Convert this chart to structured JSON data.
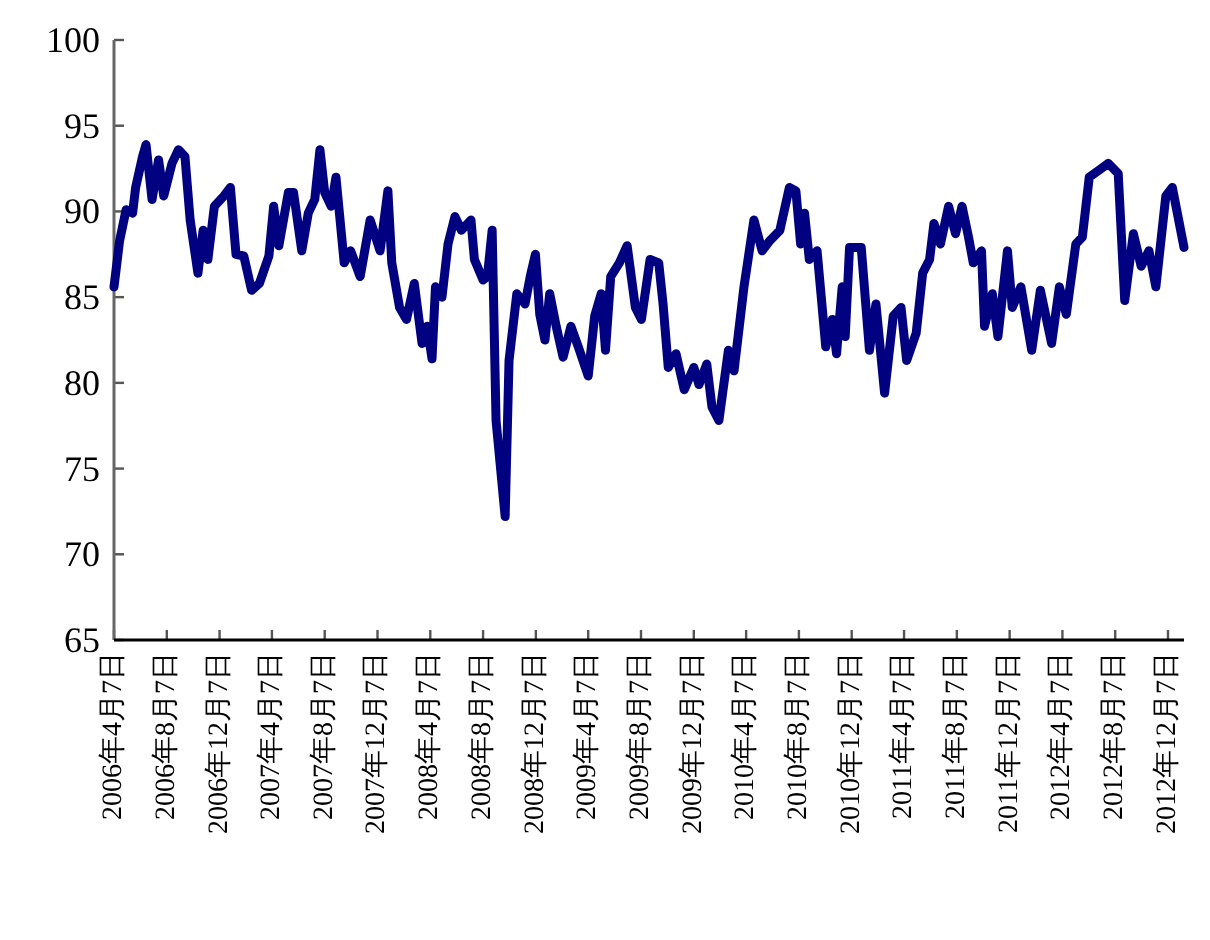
{
  "chart_data": {
    "type": "line",
    "xlim": [
      "2006-04-07",
      "2013-01-13"
    ],
    "ylim": [
      65,
      100
    ],
    "yticks": [
      65,
      70,
      75,
      80,
      85,
      90,
      95,
      100
    ],
    "xticks": [
      {
        "value": "2006-04-07",
        "label": "2006年4月7日"
      },
      {
        "value": "2006-08-07",
        "label": "2006年8月7日"
      },
      {
        "value": "2006-12-07",
        "label": "2006年12月7日"
      },
      {
        "value": "2007-04-07",
        "label": "2007年4月7日"
      },
      {
        "value": "2007-08-07",
        "label": "2007年8月7日"
      },
      {
        "value": "2007-12-07",
        "label": "2007年12月7日"
      },
      {
        "value": "2008-04-07",
        "label": "2008年4月7日"
      },
      {
        "value": "2008-08-07",
        "label": "2008年8月7日"
      },
      {
        "value": "2008-12-07",
        "label": "2008年12月7日"
      },
      {
        "value": "2009-04-07",
        "label": "2009年4月7日"
      },
      {
        "value": "2009-08-07",
        "label": "2009年8月7日"
      },
      {
        "value": "2009-12-07",
        "label": "2009年12月7日"
      },
      {
        "value": "2010-04-07",
        "label": "2010年4月7日"
      },
      {
        "value": "2010-08-07",
        "label": "2010年8月7日"
      },
      {
        "value": "2010-12-07",
        "label": "2010年12月7日"
      },
      {
        "value": "2011-04-07",
        "label": "2011年4月7日"
      },
      {
        "value": "2011-08-07",
        "label": "2011年8月7日"
      },
      {
        "value": "2011-12-07",
        "label": "2011年12月7日"
      },
      {
        "value": "2012-04-07",
        "label": "2012年4月7日"
      },
      {
        "value": "2012-08-07",
        "label": "2012年8月7日"
      },
      {
        "value": "2012-12-07",
        "label": "2012年12月7日"
      }
    ],
    "line_style": "solid",
    "marker": "none",
    "grid": false,
    "series": [
      {
        "color": "#000080",
        "x": [
          "2006-04-07",
          "2006-04-20",
          "2006-05-05",
          "2006-05-20",
          "2006-05-27",
          "2006-06-12",
          "2006-06-20",
          "2006-07-04",
          "2006-07-19",
          "2006-07-31",
          "2006-08-19",
          "2006-09-03",
          "2006-09-18",
          "2006-09-30",
          "2006-10-18",
          "2006-10-30",
          "2006-11-10",
          "2006-11-25",
          "2006-12-17",
          "2007-01-01",
          "2007-01-14",
          "2007-02-01",
          "2007-02-19",
          "2007-03-09",
          "2007-03-31",
          "2007-04-11",
          "2007-04-23",
          "2007-05-15",
          "2007-05-27",
          "2007-06-15",
          "2007-06-30",
          "2007-07-15",
          "2007-07-27",
          "2007-08-07",
          "2007-08-22",
          "2007-09-02",
          "2007-09-21",
          "2007-10-06",
          "2007-10-28",
          "2007-11-20",
          "2007-12-13",
          "2007-12-31",
          "2008-01-09",
          "2008-01-27",
          "2008-02-12",
          "2008-03-01",
          "2008-03-19",
          "2008-03-31",
          "2008-04-11",
          "2008-04-19",
          "2008-05-04",
          "2008-05-18",
          "2008-06-03",
          "2008-06-18",
          "2008-07-10",
          "2008-07-18",
          "2008-08-07",
          "2008-08-17",
          "2008-08-28",
          "2008-09-06",
          "2008-09-27",
          "2008-10-06",
          "2008-10-24",
          "2008-11-12",
          "2008-11-24",
          "2008-12-06",
          "2008-12-16",
          "2008-12-28",
          "2009-01-08",
          "2009-01-23",
          "2009-02-08",
          "2009-02-26",
          "2009-03-15",
          "2009-04-07",
          "2009-04-22",
          "2009-05-07",
          "2009-05-17",
          "2009-05-29",
          "2009-06-18",
          "2009-07-06",
          "2009-07-25",
          "2009-08-08",
          "2009-08-28",
          "2009-09-17",
          "2009-09-27",
          "2009-10-09",
          "2009-10-27",
          "2009-11-15",
          "2009-12-07",
          "2009-12-19",
          "2010-01-06",
          "2010-01-18",
          "2010-02-03",
          "2010-02-25",
          "2010-03-10",
          "2010-04-02",
          "2010-04-25",
          "2010-05-14",
          "2010-06-01",
          "2010-06-24",
          "2010-07-16",
          "2010-07-31",
          "2010-08-11",
          "2010-08-20",
          "2010-08-31",
          "2010-09-18",
          "2010-10-08",
          "2010-10-23",
          "2010-11-02",
          "2010-11-15",
          "2010-11-22",
          "2010-12-02",
          "2010-12-29",
          "2011-01-17",
          "2011-02-01",
          "2011-02-21",
          "2011-03-13",
          "2011-03-31",
          "2011-04-13",
          "2011-05-05",
          "2011-05-20",
          "2011-06-05",
          "2011-06-15",
          "2011-06-30",
          "2011-07-19",
          "2011-08-04",
          "2011-08-19",
          "2011-09-03",
          "2011-09-14",
          "2011-10-03",
          "2011-10-10",
          "2011-10-28",
          "2011-11-10",
          "2011-12-02",
          "2011-12-13",
          "2012-01-02",
          "2012-01-27",
          "2012-02-16",
          "2012-03-13",
          "2012-03-31",
          "2012-04-16",
          "2012-05-08",
          "2012-05-23",
          "2012-06-08",
          "2012-06-30",
          "2012-07-22",
          "2012-08-14",
          "2012-08-29",
          "2012-09-18",
          "2012-10-06",
          "2012-10-24",
          "2012-11-09",
          "2012-12-02",
          "2012-12-17",
          "2013-01-13"
        ],
        "values": [
          85.6,
          88.3,
          90.1,
          89.9,
          91.4,
          93.2,
          93.9,
          90.7,
          93.0,
          90.9,
          92.8,
          93.6,
          93.2,
          89.5,
          86.4,
          88.9,
          87.2,
          90.3,
          90.9,
          91.4,
          87.5,
          87.4,
          85.4,
          85.8,
          87.4,
          90.3,
          88.0,
          91.1,
          91.1,
          87.7,
          89.9,
          90.7,
          93.6,
          91.1,
          90.3,
          92.0,
          87.0,
          87.7,
          86.2,
          89.5,
          87.7,
          91.2,
          87.0,
          84.4,
          83.7,
          85.8,
          82.3,
          83.3,
          81.4,
          85.6,
          85.0,
          88.1,
          89.7,
          88.9,
          89.5,
          87.2,
          86.0,
          86.2,
          88.9,
          77.8,
          72.2,
          81.3,
          85.2,
          84.6,
          86.2,
          87.5,
          84.0,
          82.5,
          85.2,
          83.3,
          81.5,
          83.3,
          82.1,
          80.4,
          83.9,
          85.2,
          81.9,
          86.2,
          87.0,
          88.0,
          84.4,
          83.7,
          87.2,
          87.0,
          84.6,
          80.9,
          81.7,
          79.6,
          80.9,
          79.9,
          81.1,
          78.6,
          77.8,
          81.9,
          80.7,
          85.6,
          89.5,
          87.7,
          88.3,
          88.9,
          91.4,
          91.2,
          88.1,
          89.9,
          87.2,
          87.7,
          82.1,
          83.7,
          81.7,
          85.6,
          82.7,
          87.9,
          87.9,
          81.9,
          84.6,
          79.4,
          83.9,
          84.4,
          81.3,
          82.9,
          86.4,
          87.2,
          89.3,
          88.1,
          90.3,
          88.7,
          90.3,
          88.5,
          87.0,
          87.7,
          83.3,
          85.2,
          82.7,
          87.7,
          84.4,
          85.6,
          81.9,
          85.4,
          82.3,
          85.6,
          84.0,
          88.1,
          88.5,
          92.0,
          92.4,
          92.8,
          92.2,
          84.8,
          88.7,
          86.8,
          87.7,
          85.6,
          90.9,
          91.4,
          87.9
        ]
      }
    ]
  }
}
